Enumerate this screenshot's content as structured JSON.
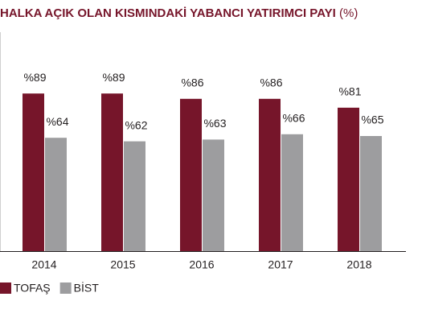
{
  "chart_data": {
    "type": "bar",
    "title": "HALKA AÇIK OLAN KISMINDAKİ YABANCI YATIRIMCI PAYI",
    "title_unit": "(%)",
    "categories": [
      "2014",
      "2015",
      "2016",
      "2017",
      "2018"
    ],
    "series": [
      {
        "name": "TOFAŞ",
        "color": "#76152a",
        "values": [
          89,
          89,
          86,
          86,
          81
        ],
        "value_labels": [
          "%89",
          "%89",
          "%86",
          "%86",
          "%81"
        ]
      },
      {
        "name": "BİST",
        "color": "#9d9d9f",
        "values": [
          64,
          62,
          63,
          66,
          65
        ],
        "value_labels": [
          "%64",
          "%62",
          "%63",
          "%66",
          "%65"
        ]
      }
    ],
    "ylim": [
      0,
      100
    ],
    "legend": "bottom-left"
  }
}
